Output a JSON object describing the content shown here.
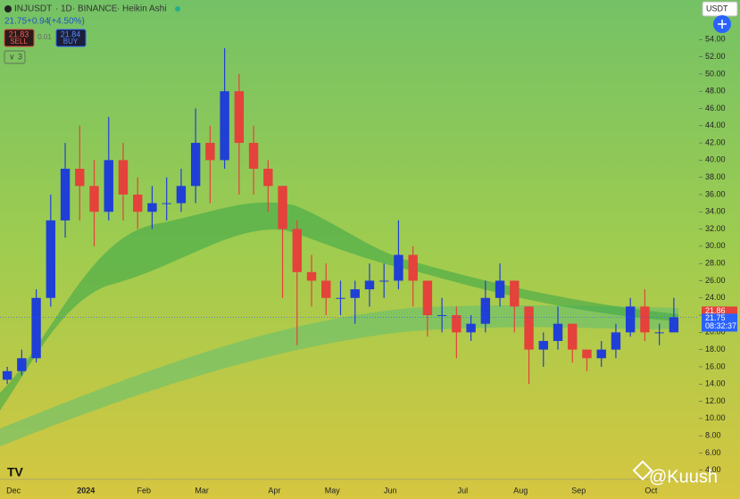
{
  "header": {
    "symbol": "INJUSDT",
    "interval": "1D",
    "exchange": "BINANCE",
    "chart_style": "Heikin Ashi",
    "price": "21.75",
    "change": "+0.94",
    "change_pct": "(+4.50%)"
  },
  "trade": {
    "sell_price": "21.83",
    "sell": "SELL",
    "spread": "0.01",
    "buy_price": "21.84",
    "buy": "BUY"
  },
  "indicators_count": "3",
  "currency": "USDT",
  "watermark": "@Kuush",
  "chart_data": {
    "type": "candlestick",
    "categories": [
      "Dec",
      null,
      null,
      null,
      null,
      "2024",
      null,
      null,
      null,
      "Feb",
      null,
      null,
      null,
      "Mar",
      null,
      null,
      null,
      null,
      "Apr",
      null,
      null,
      null,
      "May",
      null,
      null,
      null,
      "Jun",
      null,
      null,
      null,
      null,
      "Jul",
      null,
      null,
      null,
      "Aug",
      null,
      null,
      null,
      "Sep",
      null,
      null,
      null,
      null,
      "Oct",
      null,
      null
    ],
    "open": [
      14.5,
      15.5,
      17,
      24,
      33,
      39,
      37,
      34,
      40,
      36,
      34,
      35,
      35,
      37,
      42,
      40,
      48,
      42,
      39,
      37,
      32,
      27,
      26,
      24,
      24,
      25,
      26,
      26,
      29,
      26,
      22,
      22,
      20,
      21,
      24,
      26,
      23,
      18,
      19,
      21,
      18,
      17,
      18,
      20,
      23,
      20,
      20
    ],
    "high": [
      16,
      18,
      25,
      36,
      42,
      44,
      40,
      45,
      42,
      38,
      37,
      38,
      39,
      46,
      44,
      53,
      50,
      44,
      40,
      37,
      33,
      29,
      28,
      26,
      26,
      28,
      28,
      33,
      30,
      26,
      24,
      23,
      22,
      26,
      28,
      26,
      23,
      20,
      23,
      21,
      18,
      19,
      21,
      24,
      25,
      21,
      24
    ],
    "low": [
      14,
      15,
      16.5,
      23,
      31,
      33,
      30,
      33,
      33,
      32,
      32,
      33,
      34,
      35,
      35,
      39,
      36,
      36,
      34,
      24,
      18.5,
      23,
      22,
      22,
      21,
      23,
      24,
      25,
      23,
      19.5,
      20,
      17,
      19,
      20,
      23,
      20,
      14,
      16,
      18,
      16.5,
      15.5,
      16,
      17,
      19.5,
      19,
      18.5,
      20
    ],
    "close": [
      15.5,
      17,
      24,
      33,
      39,
      37,
      34,
      40,
      36,
      34,
      35,
      35,
      37,
      42,
      40,
      48,
      42,
      39,
      37,
      32,
      27,
      26,
      24,
      24,
      25,
      26,
      26,
      29,
      26,
      22,
      22,
      20,
      21,
      24,
      26,
      23,
      18,
      19,
      21,
      18,
      17,
      18,
      20,
      23,
      20,
      20,
      21.75
    ],
    "up_color": "#1f3fd6",
    "down_color": "#e4423a",
    "ylim": [
      2,
      56
    ],
    "yticks": [
      {
        "value": 4,
        "label": "4.00"
      },
      {
        "value": 6,
        "label": "6.00"
      },
      {
        "value": 8,
        "label": "8.00"
      },
      {
        "value": 10,
        "label": "10.00"
      },
      {
        "value": 12,
        "label": "12.00"
      },
      {
        "value": 14,
        "label": "14.00"
      },
      {
        "value": 16,
        "label": "16.00"
      },
      {
        "value": 18,
        "label": "18.00"
      },
      {
        "value": 20,
        "label": "20.00"
      },
      {
        "value": 22,
        "label": "22.00"
      },
      {
        "value": 24,
        "label": "24.00"
      },
      {
        "value": 26,
        "label": "26.00"
      },
      {
        "value": 28,
        "label": "28.00"
      },
      {
        "value": 30,
        "label": "30.00"
      },
      {
        "value": 32,
        "label": "32.00"
      },
      {
        "value": 34,
        "label": "34.00"
      },
      {
        "value": 36,
        "label": "36.00"
      },
      {
        "value": 38,
        "label": "38.00"
      },
      {
        "value": 40,
        "label": "40.00"
      },
      {
        "value": 42,
        "label": "42.00"
      },
      {
        "value": 44,
        "label": "44.00"
      },
      {
        "value": 46,
        "label": "46.00"
      },
      {
        "value": 48,
        "label": "48.00"
      },
      {
        "value": 50,
        "label": "50.00"
      },
      {
        "value": 52,
        "label": "52.00"
      },
      {
        "value": 54,
        "label": "54.00"
      }
    ],
    "marker_price": 21.86,
    "last_price": 21.75,
    "countdown": "08:32:37"
  }
}
